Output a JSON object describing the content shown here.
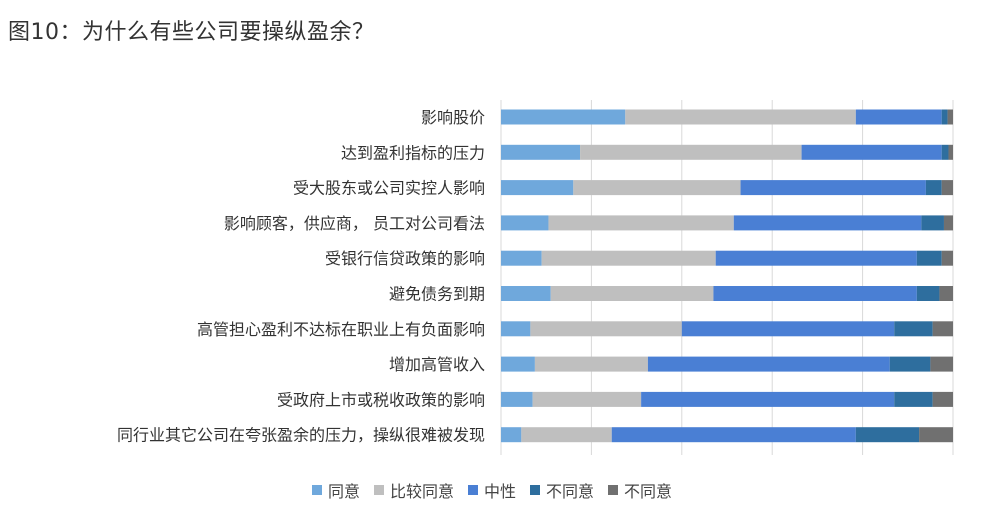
{
  "title": "图10：为什么有些公司要操纵盈余？",
  "colors": [
    "#6FA8DC",
    "#BFBFBF",
    "#4A7FD4",
    "#2E6E9E",
    "#707070"
  ],
  "chart_data": {
    "type": "bar",
    "orientation": "horizontal",
    "stacked": true,
    "normalized": true,
    "categories": [
      "影响股价",
      "达到盈利指标的压力",
      "受大股东或公司实控人影响",
      "影响顾客，供应商， 员工对公司看法",
      "受银行信贷政策的影响",
      "避免债务到期",
      "高管担心盈利不达标在职业上有负面影响",
      "增加高管收入",
      "受政府上市或税收政策的影响",
      "同行业其它公司在夸张盈余的压力，操纵很难被发现"
    ],
    "series": [
      {
        "name": "同意",
        "values": [
          27.5,
          17.5,
          16.0,
          10.5,
          9.0,
          11.0,
          6.5,
          7.5,
          7.0,
          4.5
        ]
      },
      {
        "name": "比较同意",
        "values": [
          51.0,
          49.0,
          37.0,
          41.0,
          38.5,
          36.0,
          33.5,
          25.0,
          24.0,
          20.0
        ]
      },
      {
        "name": "中性",
        "values": [
          19.0,
          31.0,
          41.0,
          41.5,
          44.5,
          45.0,
          47.0,
          53.5,
          56.0,
          54.0
        ]
      },
      {
        "name": "不同意",
        "values": [
          1.3,
          1.5,
          3.5,
          5.0,
          5.5,
          5.0,
          8.5,
          9.0,
          8.5,
          14.0
        ]
      },
      {
        "name": "不同意",
        "values": [
          1.2,
          1.0,
          2.5,
          2.0,
          2.5,
          3.0,
          4.5,
          5.0,
          4.5,
          7.5
        ]
      }
    ],
    "xlim": [
      0,
      100
    ],
    "grid": true,
    "legend_position": "bottom"
  }
}
